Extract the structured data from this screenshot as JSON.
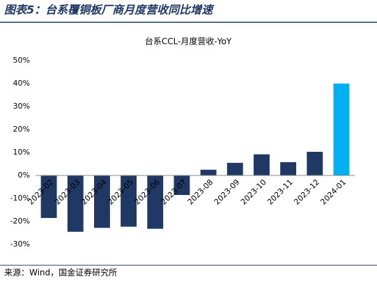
{
  "header": "图表5：台系覆铜板厂商月度营收同比增速",
  "source": "来源：Wind，国金证券研究所",
  "chart_data": {
    "type": "bar",
    "title": "台系CCL-月度营收-YoY",
    "categories": [
      "2023-02",
      "2023-03",
      "2023-04",
      "2023-05",
      "2023-06",
      "2023-07",
      "2023-08",
      "2023-09",
      "2023-10",
      "2023-11",
      "2023-12",
      "2024-01"
    ],
    "values": [
      -18.5,
      -24.5,
      -22.8,
      -22.3,
      -23.2,
      -8.5,
      2.5,
      5.5,
      9.2,
      5.8,
      10.3,
      40
    ],
    "colors": [
      "#1f3864",
      "#1f3864",
      "#1f3864",
      "#1f3864",
      "#1f3864",
      "#1f3864",
      "#1f3864",
      "#1f3864",
      "#1f3864",
      "#1f3864",
      "#1f3864",
      "#00b0f0"
    ],
    "ylim": [
      -30,
      50
    ],
    "yticks": [
      {
        "value": -30,
        "label": "-30%"
      },
      {
        "value": -20,
        "label": "-20%"
      },
      {
        "value": -10,
        "label": "-10%"
      },
      {
        "value": 0,
        "label": "0%"
      },
      {
        "value": 10,
        "label": "10%"
      },
      {
        "value": 20,
        "label": "20%"
      },
      {
        "value": 30,
        "label": "30%"
      },
      {
        "value": 40,
        "label": "40%"
      },
      {
        "value": 50,
        "label": "50%"
      }
    ],
    "grid": false
  }
}
